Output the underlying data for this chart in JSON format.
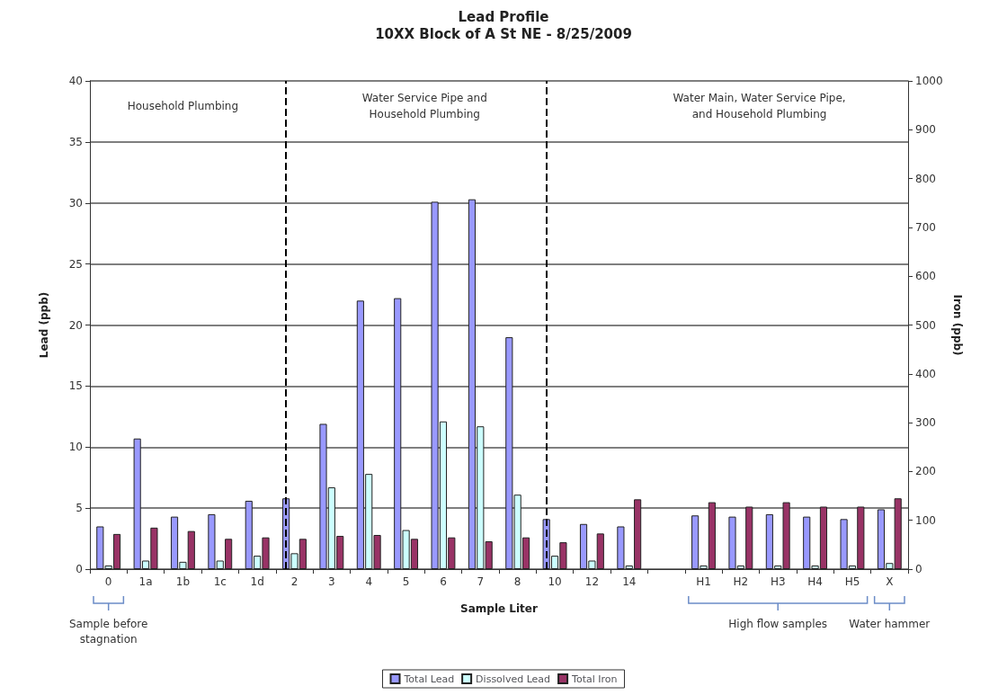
{
  "chart_data": {
    "type": "bar",
    "title": "Lead Profile",
    "subtitle": "10XX Block of A St NE - 8/25/2009",
    "xlabel": "Sample Liter",
    "ylabel": "Lead (ppb)",
    "y2label": "Iron (ppb)",
    "categories": [
      "0",
      "1a",
      "1b",
      "1c",
      "1d",
      "2",
      "3",
      "4",
      "5",
      "6",
      "7",
      "8",
      "10",
      "12",
      "14",
      null,
      "H1",
      "H2",
      "H3",
      "H4",
      "H5",
      "X"
    ],
    "series": [
      {
        "name": "Total Lead",
        "color": "#9999ff",
        "values": [
          3.5,
          10.7,
          4.3,
          4.5,
          5.6,
          5.8,
          11.9,
          22.0,
          22.2,
          30.1,
          30.3,
          19.0,
          4.1,
          3.7,
          3.5,
          null,
          4.4,
          4.3,
          4.5,
          4.3,
          4.1,
          4.9
        ]
      },
      {
        "name": "Dissolved Lead",
        "color": "#ccffff",
        "values": [
          0.3,
          0.7,
          0.6,
          0.7,
          1.1,
          1.3,
          6.7,
          7.8,
          3.2,
          12.1,
          11.7,
          6.1,
          1.1,
          0.7,
          0.3,
          null,
          0.3,
          0.3,
          0.3,
          0.3,
          0.3,
          0.5
        ]
      },
      {
        "name": "Total Iron",
        "color": "#993366",
        "axis": "y2",
        "values": [
          72,
          85,
          78,
          62,
          65,
          62,
          68,
          70,
          62,
          65,
          57,
          65,
          55,
          73,
          143,
          null,
          137,
          128,
          137,
          128,
          128,
          145
        ]
      }
    ],
    "ylim": [
      0,
      40
    ],
    "yticks": [
      0,
      5,
      10,
      15,
      20,
      25,
      30,
      35,
      40
    ],
    "y2lim": [
      0,
      1000
    ],
    "y2ticks": [
      0,
      100,
      200,
      300,
      400,
      500,
      600,
      700,
      800,
      900,
      1000
    ],
    "grid": "y",
    "legend": "bottom",
    "ref_lines": [
      {
        "axis": "x",
        "value": "2",
        "line_style": "dashed",
        "color": "#000000"
      },
      {
        "axis": "x",
        "value": "10",
        "line_style": "dashed",
        "color": "#000000"
      }
    ],
    "annotations": [
      "Household Plumbing",
      "Water Service Pipe and\nHousehold Plumbing",
      "Water Main, Water Service Pipe,\nand Household Plumbing",
      "Sample before\nstagnation",
      "High flow samples",
      "Water hammer"
    ]
  }
}
